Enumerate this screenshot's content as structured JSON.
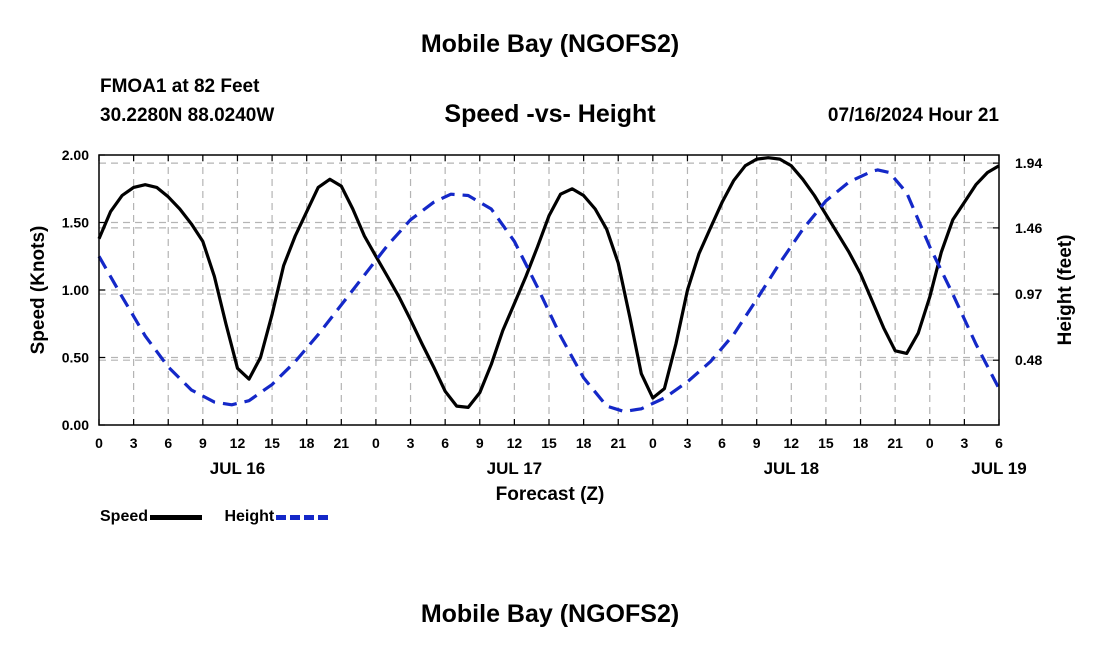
{
  "page": {
    "title": "Mobile Bay (NGOFS2)",
    "footer_title": "Mobile Bay (NGOFS2)"
  },
  "station": {
    "name": "FMOA1 at 82 Feet",
    "coords": "30.2280N  88.0240W",
    "run_time": "07/16/2024 Hour 21"
  },
  "colors": {
    "speed": "#000000",
    "height": "#1428c8",
    "grid": "#b4b4b4"
  },
  "chart_data": {
    "type": "line",
    "title": "Speed -vs- Height",
    "xlabel": "Forecast (Z)",
    "ylabel": "Speed (Knots)",
    "y2label": "Height (feet)",
    "xlim_hours": [
      0,
      78
    ],
    "ylim": [
      0,
      2.0
    ],
    "y2lim": [
      0,
      2.0
    ],
    "grid": true,
    "legend_position": "bottom-left",
    "x_ticks": [
      {
        "hour": 0,
        "label": "0"
      },
      {
        "hour": 3,
        "label": "3"
      },
      {
        "hour": 6,
        "label": "6"
      },
      {
        "hour": 9,
        "label": "9"
      },
      {
        "hour": 12,
        "label": "12"
      },
      {
        "hour": 15,
        "label": "15"
      },
      {
        "hour": 18,
        "label": "18"
      },
      {
        "hour": 21,
        "label": "21"
      },
      {
        "hour": 24,
        "label": "0"
      },
      {
        "hour": 27,
        "label": "3"
      },
      {
        "hour": 30,
        "label": "6"
      },
      {
        "hour": 33,
        "label": "9"
      },
      {
        "hour": 36,
        "label": "12"
      },
      {
        "hour": 39,
        "label": "15"
      },
      {
        "hour": 42,
        "label": "18"
      },
      {
        "hour": 45,
        "label": "21"
      },
      {
        "hour": 48,
        "label": "0"
      },
      {
        "hour": 51,
        "label": "3"
      },
      {
        "hour": 54,
        "label": "6"
      },
      {
        "hour": 57,
        "label": "9"
      },
      {
        "hour": 60,
        "label": "12"
      },
      {
        "hour": 63,
        "label": "15"
      },
      {
        "hour": 66,
        "label": "18"
      },
      {
        "hour": 69,
        "label": "21"
      },
      {
        "hour": 72,
        "label": "0"
      },
      {
        "hour": 75,
        "label": "3"
      },
      {
        "hour": 78,
        "label": "6"
      }
    ],
    "date_labels": [
      {
        "hour": 12,
        "label": "JUL 16"
      },
      {
        "hour": 36,
        "label": "JUL 17"
      },
      {
        "hour": 60,
        "label": "JUL 18"
      },
      {
        "hour": 78,
        "label": "JUL 19"
      }
    ],
    "y_ticks": [
      {
        "value": 0.0,
        "label": "0.00"
      },
      {
        "value": 0.5,
        "label": "0.50"
      },
      {
        "value": 1.0,
        "label": "1.00"
      },
      {
        "value": 1.5,
        "label": "1.50"
      },
      {
        "value": 2.0,
        "label": "2.00"
      }
    ],
    "y2_ticks": [
      {
        "value": 0.48,
        "label": "0.48"
      },
      {
        "value": 0.97,
        "label": "0.97"
      },
      {
        "value": 1.46,
        "label": "1.46"
      },
      {
        "value": 1.94,
        "label": "1.94"
      }
    ],
    "series": [
      {
        "name": "Speed",
        "style": "solid",
        "points": [
          [
            0,
            1.38
          ],
          [
            1,
            1.58
          ],
          [
            2,
            1.7
          ],
          [
            3,
            1.76
          ],
          [
            4,
            1.78
          ],
          [
            5,
            1.76
          ],
          [
            6,
            1.69
          ],
          [
            7,
            1.6
          ],
          [
            8,
            1.49
          ],
          [
            9,
            1.36
          ],
          [
            10,
            1.1
          ],
          [
            11,
            0.75
          ],
          [
            12,
            0.42
          ],
          [
            13,
            0.34
          ],
          [
            14,
            0.5
          ],
          [
            15,
            0.82
          ],
          [
            16,
            1.18
          ],
          [
            17,
            1.4
          ],
          [
            18,
            1.58
          ],
          [
            19,
            1.76
          ],
          [
            20,
            1.82
          ],
          [
            21,
            1.77
          ],
          [
            22,
            1.6
          ],
          [
            23,
            1.4
          ],
          [
            24,
            1.25
          ],
          [
            25,
            1.1
          ],
          [
            26,
            0.95
          ],
          [
            27,
            0.78
          ],
          [
            28,
            0.6
          ],
          [
            29,
            0.43
          ],
          [
            30,
            0.25
          ],
          [
            31,
            0.14
          ],
          [
            32,
            0.13
          ],
          [
            33,
            0.24
          ],
          [
            34,
            0.45
          ],
          [
            35,
            0.7
          ],
          [
            36,
            0.9
          ],
          [
            37,
            1.1
          ],
          [
            38,
            1.32
          ],
          [
            39,
            1.55
          ],
          [
            40,
            1.71
          ],
          [
            41,
            1.75
          ],
          [
            42,
            1.7
          ],
          [
            43,
            1.6
          ],
          [
            44,
            1.45
          ],
          [
            45,
            1.2
          ],
          [
            46,
            0.8
          ],
          [
            47,
            0.38
          ],
          [
            48,
            0.2
          ],
          [
            49,
            0.27
          ],
          [
            50,
            0.6
          ],
          [
            51,
            1.0
          ],
          [
            52,
            1.27
          ],
          [
            53,
            1.46
          ],
          [
            54,
            1.65
          ],
          [
            55,
            1.81
          ],
          [
            56,
            1.92
          ],
          [
            57,
            1.97
          ],
          [
            58,
            1.98
          ],
          [
            59,
            1.97
          ],
          [
            60,
            1.92
          ],
          [
            61,
            1.82
          ],
          [
            62,
            1.7
          ],
          [
            63,
            1.56
          ],
          [
            64,
            1.42
          ],
          [
            65,
            1.28
          ],
          [
            66,
            1.12
          ],
          [
            67,
            0.92
          ],
          [
            68,
            0.72
          ],
          [
            69,
            0.55
          ],
          [
            70,
            0.53
          ],
          [
            71,
            0.68
          ],
          [
            72,
            0.95
          ],
          [
            73,
            1.28
          ],
          [
            74,
            1.52
          ],
          [
            75,
            1.65
          ],
          [
            76,
            1.78
          ],
          [
            77,
            1.87
          ],
          [
            78,
            1.92
          ]
        ]
      },
      {
        "name": "Height",
        "style": "dashed",
        "points": [
          [
            0,
            1.25
          ],
          [
            2,
            0.95
          ],
          [
            4,
            0.66
          ],
          [
            6,
            0.43
          ],
          [
            8,
            0.26
          ],
          [
            10,
            0.17
          ],
          [
            11.5,
            0.15
          ],
          [
            13,
            0.18
          ],
          [
            15,
            0.3
          ],
          [
            17,
            0.47
          ],
          [
            19,
            0.67
          ],
          [
            21,
            0.89
          ],
          [
            23,
            1.11
          ],
          [
            25,
            1.33
          ],
          [
            27,
            1.52
          ],
          [
            29,
            1.65
          ],
          [
            30.5,
            1.71
          ],
          [
            32,
            1.7
          ],
          [
            34,
            1.6
          ],
          [
            36,
            1.36
          ],
          [
            38,
            1.02
          ],
          [
            40,
            0.66
          ],
          [
            42,
            0.35
          ],
          [
            44,
            0.14
          ],
          [
            45.5,
            0.1
          ],
          [
            47,
            0.12
          ],
          [
            49,
            0.2
          ],
          [
            51,
            0.32
          ],
          [
            53,
            0.47
          ],
          [
            55,
            0.67
          ],
          [
            57,
            0.93
          ],
          [
            59,
            1.2
          ],
          [
            61,
            1.45
          ],
          [
            63,
            1.66
          ],
          [
            65,
            1.8
          ],
          [
            67,
            1.88
          ],
          [
            67.5,
            1.89
          ],
          [
            68.5,
            1.87
          ],
          [
            70,
            1.72
          ],
          [
            72,
            1.32
          ],
          [
            74,
            0.97
          ],
          [
            76,
            0.6
          ],
          [
            78,
            0.27
          ]
        ]
      }
    ]
  }
}
